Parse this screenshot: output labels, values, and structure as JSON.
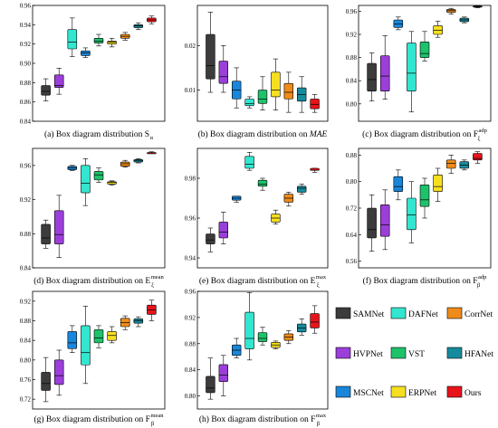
{
  "colors": {
    "SAMNet": "#3c3c3c",
    "DAFNet": "#33e6d0",
    "CorrNet": "#ef8b1a",
    "HVPNet": "#9b3fd9",
    "VST": "#1ec26a",
    "HFANet": "#178b9e",
    "MSCNet": "#1a86d9",
    "ERPNet": "#f6df21",
    "Ours": "#e8141b"
  },
  "legend": {
    "entries": [
      "SAMNet",
      "DAFNet",
      "CorrNet",
      "HVPNet",
      "VST",
      "HFANet",
      "MSCNet",
      "ERPNet",
      "Ours"
    ]
  },
  "chart_data": [
    {
      "type": "box",
      "caption": "(a) Box diagram distribution S",
      "caption_sub": "α",
      "caption_sup": "",
      "ylim": [
        0.84,
        0.96
      ],
      "yticks": [
        0.84,
        0.86,
        0.88,
        0.9,
        0.92,
        0.94,
        0.96
      ],
      "ticklabels": [
        "0.84",
        "0.86",
        "0.88",
        "0.90",
        "0.92",
        "0.94",
        "0.96"
      ],
      "series": [
        "SAMNet",
        "HVPNet",
        "DAFNet",
        "MSCNet",
        "VST",
        "ERPNet",
        "CorrNet",
        "HFANet",
        "Ours"
      ],
      "boxes": [
        {
          "min": 0.861,
          "q1": 0.867,
          "median": 0.871,
          "q3": 0.877,
          "max": 0.884
        },
        {
          "min": 0.868,
          "q1": 0.875,
          "median": 0.877,
          "q3": 0.888,
          "max": 0.895
        },
        {
          "min": 0.907,
          "q1": 0.915,
          "median": 0.922,
          "q3": 0.935,
          "max": 0.947
        },
        {
          "min": 0.906,
          "q1": 0.908,
          "median": 0.911,
          "q3": 0.913,
          "max": 0.916
        },
        {
          "min": 0.918,
          "q1": 0.921,
          "median": 0.923,
          "q3": 0.926,
          "max": 0.93
        },
        {
          "min": 0.917,
          "q1": 0.92,
          "median": 0.922,
          "q3": 0.923,
          "max": 0.926
        },
        {
          "min": 0.924,
          "q1": 0.926,
          "median": 0.928,
          "q3": 0.93,
          "max": 0.932
        },
        {
          "min": 0.935,
          "q1": 0.937,
          "median": 0.939,
          "q3": 0.94,
          "max": 0.942
        },
        {
          "min": 0.941,
          "q1": 0.943,
          "median": 0.945,
          "q3": 0.947,
          "max": 0.949
        }
      ]
    },
    {
      "type": "box",
      "caption": "(b) Box diagram distribution on ",
      "caption_italic": "MAE",
      "caption_sub": "",
      "caption_sup": "",
      "ylim": [
        0.003,
        0.029
      ],
      "yticks": [
        0.01,
        0.02
      ],
      "ticklabels": [
        "0.01",
        "0.02"
      ],
      "series": [
        "SAMNet",
        "HVPNet",
        "MSCNet",
        "DAFNet",
        "VST",
        "ERPNet",
        "CorrNet",
        "HFANet",
        "Ours"
      ],
      "boxes": [
        {
          "min": 0.0095,
          "q1": 0.0125,
          "median": 0.0155,
          "q3": 0.0225,
          "max": 0.0275
        },
        {
          "min": 0.0095,
          "q1": 0.0115,
          "median": 0.013,
          "q3": 0.0165,
          "max": 0.02
        },
        {
          "min": 0.006,
          "q1": 0.008,
          "median": 0.01,
          "q3": 0.012,
          "max": 0.015
        },
        {
          "min": 0.006,
          "q1": 0.0065,
          "median": 0.007,
          "q3": 0.008,
          "max": 0.0085
        },
        {
          "min": 0.0055,
          "q1": 0.007,
          "median": 0.008,
          "q3": 0.01,
          "max": 0.013
        },
        {
          "min": 0.0055,
          "q1": 0.0085,
          "median": 0.01,
          "q3": 0.014,
          "max": 0.017
        },
        {
          "min": 0.005,
          "q1": 0.008,
          "median": 0.0095,
          "q3": 0.0115,
          "max": 0.014
        },
        {
          "min": 0.005,
          "q1": 0.0075,
          "median": 0.009,
          "q3": 0.0105,
          "max": 0.013
        },
        {
          "min": 0.005,
          "q1": 0.0058,
          "median": 0.0068,
          "q3": 0.008,
          "max": 0.009
        }
      ]
    },
    {
      "type": "box",
      "caption": "(c) Box diagram distribution on  F",
      "caption_sub": "ξ",
      "caption_sup": "adp",
      "ylim": [
        0.77,
        0.97
      ],
      "yticks": [
        0.8,
        0.84,
        0.88,
        0.92,
        0.96
      ],
      "ticklabels": [
        "0.80",
        "0.84",
        "0.88",
        "0.92",
        "0.96"
      ],
      "series": [
        "SAMNet",
        "HVPNet",
        "MSCNet",
        "DAFNet",
        "VST",
        "ERPNet",
        "CorrNet",
        "HFANet",
        "Ours"
      ],
      "boxes": [
        {
          "min": 0.805,
          "q1": 0.822,
          "median": 0.842,
          "q3": 0.87,
          "max": 0.888
        },
        {
          "min": 0.808,
          "q1": 0.822,
          "median": 0.848,
          "q3": 0.883,
          "max": 0.918
        },
        {
          "min": 0.928,
          "q1": 0.932,
          "median": 0.938,
          "q3": 0.945,
          "max": 0.95
        },
        {
          "min": 0.786,
          "q1": 0.822,
          "median": 0.853,
          "q3": 0.905,
          "max": 0.925
        },
        {
          "min": 0.874,
          "q1": 0.88,
          "median": 0.887,
          "q3": 0.907,
          "max": 0.925
        },
        {
          "min": 0.915,
          "q1": 0.92,
          "median": 0.927,
          "q3": 0.935,
          "max": 0.943
        },
        {
          "min": 0.955,
          "q1": 0.958,
          "median": 0.961,
          "q3": 0.963,
          "max": 0.965
        },
        {
          "min": 0.94,
          "q1": 0.942,
          "median": 0.945,
          "q3": 0.948,
          "max": 0.95
        },
        {
          "min": 0.966,
          "q1": 0.967,
          "median": 0.968,
          "q3": 0.969,
          "max": 0.97
        }
      ]
    },
    {
      "type": "box",
      "caption": "(d) Box diagram distribution on  E",
      "caption_sub": "ξ",
      "caption_sup": "mean",
      "ylim": [
        0.84,
        0.98
      ],
      "yticks": [
        0.84,
        0.88,
        0.92,
        0.96
      ],
      "ticklabels": [
        "0.84",
        "0.88",
        "0.92",
        "0.96"
      ],
      "series": [
        "SAMNet",
        "HVPNet",
        "MSCNet",
        "DAFNet",
        "VST",
        "ERPNet",
        "CorrNet",
        "HFANet",
        "Ours"
      ],
      "boxes": [
        {
          "min": 0.863,
          "q1": 0.868,
          "median": 0.875,
          "q3": 0.891,
          "max": 0.896
        },
        {
          "min": 0.852,
          "q1": 0.868,
          "median": 0.879,
          "q3": 0.907,
          "max": 0.925
        },
        {
          "min": 0.954,
          "q1": 0.955,
          "median": 0.957,
          "q3": 0.959,
          "max": 0.96
        },
        {
          "min": 0.913,
          "q1": 0.928,
          "median": 0.939,
          "q3": 0.96,
          "max": 0.968
        },
        {
          "min": 0.94,
          "q1": 0.943,
          "median": 0.949,
          "q3": 0.953,
          "max": 0.957
        },
        {
          "min": 0.937,
          "q1": 0.938,
          "median": 0.94,
          "q3": 0.941,
          "max": 0.942
        },
        {
          "min": 0.958,
          "q1": 0.959,
          "median": 0.962,
          "q3": 0.964,
          "max": 0.966
        },
        {
          "min": 0.963,
          "q1": 0.964,
          "median": 0.966,
          "q3": 0.967,
          "max": 0.968
        },
        {
          "min": 0.974,
          "q1": 0.974,
          "median": 0.975,
          "q3": 0.975,
          "max": 0.976
        }
      ]
    },
    {
      "type": "box",
      "caption": "(e) Box diagram distribution on  E",
      "caption_sub": "ξ",
      "caption_sup": "max",
      "ylim": [
        0.935,
        0.995
      ],
      "yticks": [
        0.94,
        0.96,
        0.98
      ],
      "ticklabels": [
        "0.94",
        "0.96",
        "0.98"
      ],
      "series": [
        "SAMNet",
        "HVPNet",
        "MSCNet",
        "DAFNet",
        "VST",
        "ERPNet",
        "CorrNet",
        "HFANet",
        "Ours"
      ],
      "boxes": [
        {
          "min": 0.943,
          "q1": 0.947,
          "median": 0.949,
          "q3": 0.952,
          "max": 0.955
        },
        {
          "min": 0.947,
          "q1": 0.95,
          "median": 0.953,
          "q3": 0.958,
          "max": 0.963
        },
        {
          "min": 0.968,
          "q1": 0.969,
          "median": 0.97,
          "q3": 0.971,
          "max": 0.971
        },
        {
          "min": 0.984,
          "q1": 0.985,
          "median": 0.987,
          "q3": 0.991,
          "max": 0.993
        },
        {
          "min": 0.974,
          "q1": 0.976,
          "median": 0.977,
          "q3": 0.979,
          "max": 0.98
        },
        {
          "min": 0.957,
          "q1": 0.958,
          "median": 0.96,
          "q3": 0.962,
          "max": 0.964
        },
        {
          "min": 0.966,
          "q1": 0.968,
          "median": 0.97,
          "q3": 0.972,
          "max": 0.973
        },
        {
          "min": 0.972,
          "q1": 0.973,
          "median": 0.975,
          "q3": 0.976,
          "max": 0.977
        },
        {
          "min": 0.983,
          "q1": 0.984,
          "median": 0.984,
          "q3": 0.985,
          "max": 0.985
        }
      ]
    },
    {
      "type": "box",
      "caption": "(f) Box diagram distribution on  F",
      "caption_sub": "β",
      "caption_sup": "adp",
      "ylim": [
        0.54,
        0.9
      ],
      "yticks": [
        0.56,
        0.64,
        0.72,
        0.8,
        0.88
      ],
      "ticklabels": [
        "0.56",
        "0.64",
        "0.72",
        "0.80",
        "0.88"
      ],
      "series": [
        "SAMNet",
        "HVPNet",
        "MSCNet",
        "DAFNet",
        "VST",
        "ERPNet",
        "CorrNet",
        "HFANet",
        "Ours"
      ],
      "boxes": [
        {
          "min": 0.59,
          "q1": 0.63,
          "median": 0.655,
          "q3": 0.72,
          "max": 0.76
        },
        {
          "min": 0.595,
          "q1": 0.635,
          "median": 0.67,
          "q3": 0.73,
          "max": 0.775
        },
        {
          "min": 0.745,
          "q1": 0.77,
          "median": 0.785,
          "q3": 0.815,
          "max": 0.835
        },
        {
          "min": 0.615,
          "q1": 0.655,
          "median": 0.7,
          "q3": 0.75,
          "max": 0.8
        },
        {
          "min": 0.69,
          "q1": 0.725,
          "median": 0.745,
          "q3": 0.79,
          "max": 0.81
        },
        {
          "min": 0.74,
          "q1": 0.77,
          "median": 0.785,
          "q3": 0.82,
          "max": 0.84
        },
        {
          "min": 0.825,
          "q1": 0.84,
          "median": 0.855,
          "q3": 0.865,
          "max": 0.88
        },
        {
          "min": 0.835,
          "q1": 0.84,
          "median": 0.85,
          "q3": 0.86,
          "max": 0.865
        },
        {
          "min": 0.855,
          "q1": 0.865,
          "median": 0.87,
          "q3": 0.885,
          "max": 0.89
        }
      ]
    },
    {
      "type": "box",
      "caption": "(g) Box diagram distribution on  F",
      "caption_sub": "β",
      "caption_sup": "mean",
      "ylim": [
        0.7,
        0.94
      ],
      "yticks": [
        0.72,
        0.76,
        0.8,
        0.84,
        0.88,
        0.92
      ],
      "ticklabels": [
        "0.72",
        "0.76",
        "0.80",
        "0.84",
        "0.88",
        "0.92"
      ],
      "series": [
        "SAMNet",
        "HVPNet",
        "MSCNet",
        "DAFNet",
        "VST",
        "ERPNet",
        "CorrNet",
        "HFANet",
        "Ours"
      ],
      "boxes": [
        {
          "min": 0.715,
          "q1": 0.738,
          "median": 0.752,
          "q3": 0.775,
          "max": 0.805
        },
        {
          "min": 0.728,
          "q1": 0.75,
          "median": 0.768,
          "q3": 0.8,
          "max": 0.82
        },
        {
          "min": 0.815,
          "q1": 0.823,
          "median": 0.835,
          "q3": 0.858,
          "max": 0.87
        },
        {
          "min": 0.752,
          "q1": 0.79,
          "median": 0.815,
          "q3": 0.87,
          "max": 0.91
        },
        {
          "min": 0.825,
          "q1": 0.835,
          "median": 0.845,
          "q3": 0.862,
          "max": 0.87
        },
        {
          "min": 0.835,
          "q1": 0.84,
          "median": 0.85,
          "q3": 0.858,
          "max": 0.868
        },
        {
          "min": 0.862,
          "q1": 0.868,
          "median": 0.876,
          "q3": 0.885,
          "max": 0.89
        },
        {
          "min": 0.868,
          "q1": 0.875,
          "median": 0.88,
          "q3": 0.884,
          "max": 0.888
        },
        {
          "min": 0.88,
          "q1": 0.893,
          "median": 0.902,
          "q3": 0.912,
          "max": 0.922
        }
      ]
    },
    {
      "type": "box",
      "caption": "(h) Box diagram distribution on  F",
      "caption_sub": "β",
      "caption_sup": "max",
      "ylim": [
        0.78,
        0.96
      ],
      "yticks": [
        0.8,
        0.84,
        0.88,
        0.92,
        0.96
      ],
      "ticklabels": [
        "0.80",
        "0.84",
        "0.88",
        "0.92",
        "0.96"
      ],
      "series": [
        "SAMNet",
        "HVPNet",
        "MSCNet",
        "DAFNet",
        "VST",
        "ERPNet",
        "CorrNet",
        "HFANet",
        "Ours"
      ],
      "boxes": [
        {
          "min": 0.795,
          "q1": 0.805,
          "median": 0.812,
          "q3": 0.83,
          "max": 0.858
        },
        {
          "min": 0.8,
          "q1": 0.822,
          "median": 0.832,
          "q3": 0.848,
          "max": 0.862
        },
        {
          "min": 0.858,
          "q1": 0.862,
          "median": 0.87,
          "q3": 0.878,
          "max": 0.888
        },
        {
          "min": 0.855,
          "q1": 0.872,
          "median": 0.888,
          "q3": 0.928,
          "max": 0.958
        },
        {
          "min": 0.878,
          "q1": 0.883,
          "median": 0.888,
          "q3": 0.897,
          "max": 0.905
        },
        {
          "min": 0.872,
          "q1": 0.874,
          "median": 0.878,
          "q3": 0.882,
          "max": 0.884
        },
        {
          "min": 0.88,
          "q1": 0.885,
          "median": 0.89,
          "q3": 0.895,
          "max": 0.9
        },
        {
          "min": 0.893,
          "q1": 0.898,
          "median": 0.904,
          "q3": 0.91,
          "max": 0.918
        },
        {
          "min": 0.896,
          "q1": 0.904,
          "median": 0.913,
          "q3": 0.926,
          "max": 0.938
        }
      ]
    }
  ]
}
